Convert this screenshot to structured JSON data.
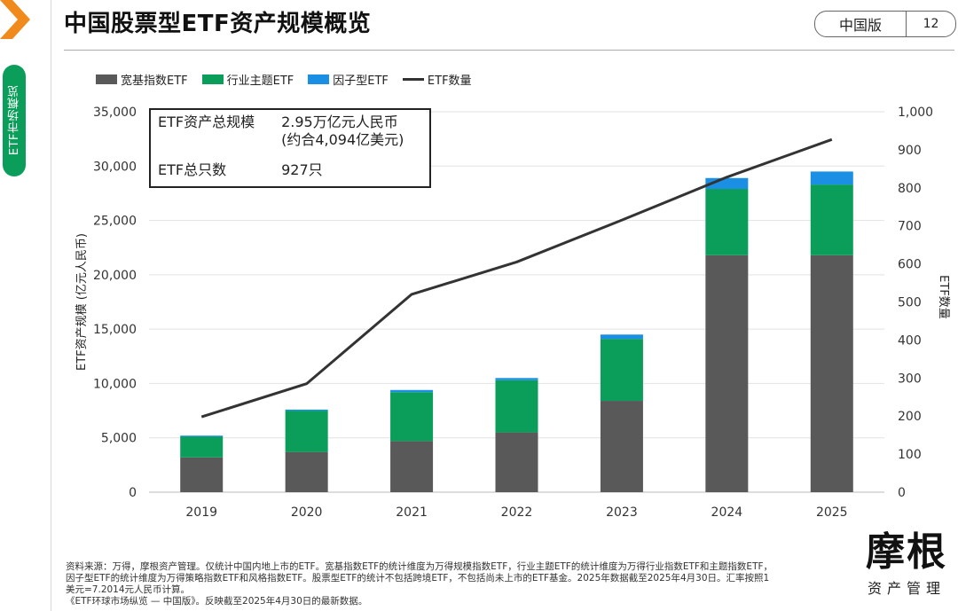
{
  "header": {
    "title": "中国股票型ETF资产规模概览",
    "edition": "中国版",
    "page_number": "12"
  },
  "sidebar": {
    "tab_label": "ETF市场概览"
  },
  "legend": {
    "broad": "宽基指数ETF",
    "sector": "行业主题ETF",
    "factor": "因子型ETF",
    "count": "ETF数量"
  },
  "infobox": {
    "row1_label": "ETF资产总规模",
    "row1_value_line1": "2.95万亿元人民币",
    "row1_value_line2": "(约合4,094亿美元)",
    "row2_label": "ETF总只数",
    "row2_value": "927只"
  },
  "chart_data": {
    "type": "bar",
    "stacked": true,
    "categories": [
      "2019",
      "2020",
      "2021",
      "2022",
      "2023",
      "2024",
      "2025"
    ],
    "series": [
      {
        "name": "宽基指数ETF",
        "color": "#595959",
        "values": [
          3200,
          3700,
          4700,
          5500,
          8400,
          21800,
          21800
        ]
      },
      {
        "name": "行业主题ETF",
        "color": "#0a9e5a",
        "values": [
          1900,
          3800,
          4500,
          4800,
          5700,
          6100,
          6500
        ]
      },
      {
        "name": "因子型ETF",
        "color": "#1a8fe3",
        "values": [
          100,
          100,
          200,
          200,
          400,
          1000,
          1200
        ]
      }
    ],
    "line_series": {
      "name": "ETF数量",
      "color": "#333333",
      "axis": "right",
      "values": [
        198,
        285,
        520,
        605,
        715,
        828,
        927
      ]
    },
    "ylabel": "ETF资产规模 (亿元人民币)",
    "ylabel_right": "ETF数量",
    "ylim": [
      0,
      35000
    ],
    "ylim_right": [
      0,
      1000
    ],
    "yticks": [
      "0",
      "5,000",
      "10,000",
      "15,000",
      "20,000",
      "25,000",
      "30,000",
      "35,000"
    ],
    "yticks_right": [
      "0",
      "100",
      "200",
      "300",
      "400",
      "500",
      "600",
      "700",
      "800",
      "900",
      "1,000"
    ],
    "grid": true,
    "legend_position": "top-left"
  },
  "footnote": {
    "line1": "资料来源：万得，摩根资产管理。仅统计中国内地上市的ETF。宽基指数ETF的统计维度为万得规模指数ETF，行业主题ETF的统计维度为万得行业指数ETF和主题指数ETF，",
    "line2": "因子型ETF的统计维度为万得策略指数ETF和风格指数ETF。股票型ETF的统计不包括跨境ETF，不包括尚未上市的ETF基金。2025年数据截至2025年4月30日。汇率按照1",
    "line3": "美元=7.2014元人民币计算。",
    "line4": "《ETF环球市场纵览 — 中国版》。反映截至2025年4月30日的最新数据。"
  },
  "logo": {
    "main": "摩根",
    "sub": "资产管理"
  }
}
